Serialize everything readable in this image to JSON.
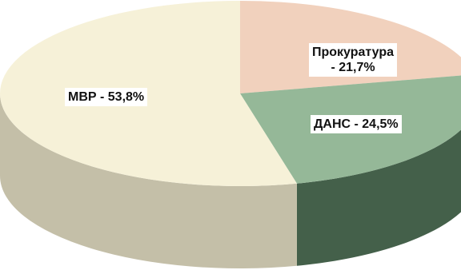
{
  "chart_data": {
    "type": "pie",
    "title": "",
    "categories": [
      "МВР",
      "Прокуратура",
      "ДАНС"
    ],
    "values": [
      53.8,
      21.7,
      24.5
    ],
    "unit": "%",
    "style": "3d",
    "labels": [
      {
        "line1": "МВР - 53,8%",
        "line2": ""
      },
      {
        "line1": "Прокуратура",
        "line2": "- 21,7%"
      },
      {
        "line1": "ДАНС - 24,5%",
        "line2": ""
      }
    ],
    "colors": {
      "top": [
        "#f6f1d8",
        "#f1d1bd",
        "#95b898"
      ],
      "side": [
        "#c4bfa8",
        "#b4978a",
        "#44604a"
      ]
    }
  }
}
